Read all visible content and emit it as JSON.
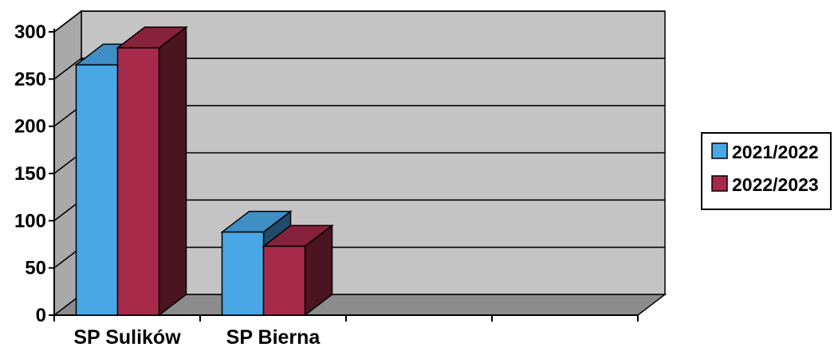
{
  "chart_data": {
    "type": "bar",
    "title": "",
    "xlabel": "",
    "ylabel": "",
    "categories": [
      "SP Sulików",
      "SP Bierna"
    ],
    "series": [
      {
        "name": "2021/2022",
        "color": "#4aa7e6",
        "values": [
          265,
          88
        ]
      },
      {
        "name": "2022/2023",
        "color": "#a82a4a",
        "values": [
          283,
          73
        ]
      }
    ],
    "ylim": [
      0,
      300
    ],
    "yticks": [
      0,
      50,
      100,
      150,
      200,
      250,
      300
    ],
    "grid": true,
    "legend_position": "right",
    "style": "3d-clustered-column"
  }
}
